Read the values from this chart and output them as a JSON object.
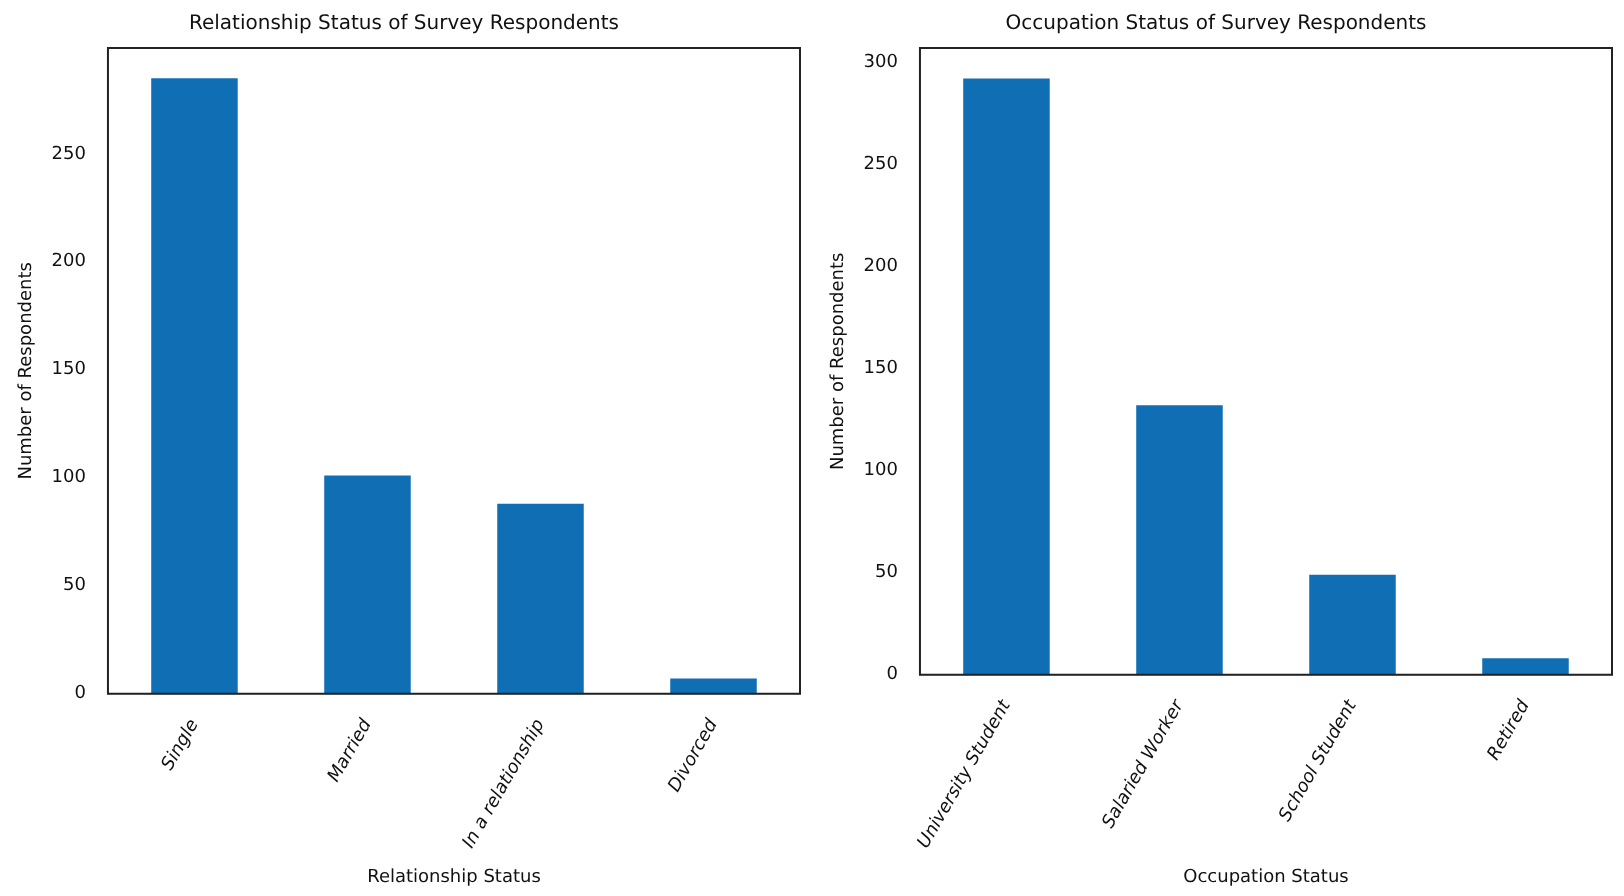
{
  "chart_data": [
    {
      "type": "bar",
      "title": "Relationship Status of Survey Respondents",
      "xlabel": "Relationship Status",
      "ylabel": "Number of Respondents",
      "categories": [
        "Single",
        "Married",
        "In a relationship",
        "Divorced"
      ],
      "values": [
        285,
        101,
        88,
        7
      ],
      "color": "#106eb4",
      "ylim": [
        0,
        299
      ],
      "yticks": [
        0,
        50,
        100,
        150,
        200,
        250
      ],
      "grid": false,
      "legend": false
    },
    {
      "type": "bar",
      "title": "Occupation Status of Survey Respondents",
      "xlabel": "Occupation Status",
      "ylabel": "Number of Respondents",
      "categories": [
        "University Student",
        "Salaried Worker",
        "School Student",
        "Retired"
      ],
      "values": [
        292,
        132,
        49,
        8
      ],
      "color": "#106eb4",
      "ylim": [
        0,
        307
      ],
      "yticks": [
        0,
        50,
        100,
        150,
        200,
        250,
        300
      ],
      "grid": false,
      "legend": false
    }
  ]
}
